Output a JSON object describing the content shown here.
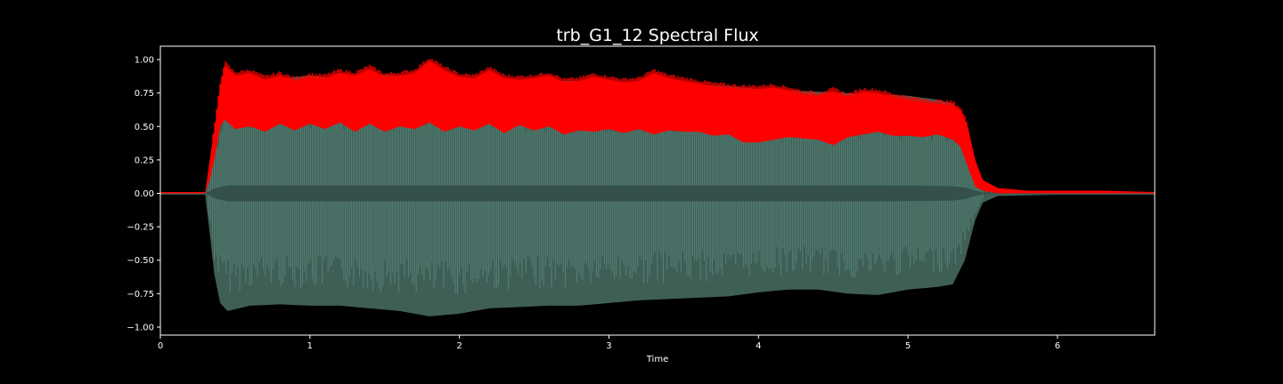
{
  "chart_data": {
    "type": "area",
    "title": "trb_G1_12 Spectral Flux",
    "xlabel": "Time",
    "ylabel": "",
    "xlim": [
      0,
      6.65
    ],
    "ylim": [
      -1.06,
      1.1
    ],
    "xticks": [
      0,
      1,
      2,
      3,
      4,
      5,
      6
    ],
    "xtick_labels": [
      "0",
      "1",
      "2",
      "3",
      "4",
      "5",
      "6"
    ],
    "yticks": [
      -1.0,
      -0.75,
      -0.5,
      -0.25,
      0.0,
      0.25,
      0.5,
      0.75,
      1.0
    ],
    "ytick_labels": [
      "−1.00",
      "−0.75",
      "−0.50",
      "−0.25",
      "0.00",
      "0.25",
      "0.50",
      "0.75",
      "1.00"
    ],
    "grid": false,
    "colors": {
      "background": "#000000",
      "waveform": "#3f5f56",
      "waveform_light": "#5e8c80",
      "flux": "#ff0000",
      "axes": "#ffffff"
    },
    "series": [
      {
        "kind": "waveform_envelope",
        "x": [
          0,
          0.3,
          0.33,
          0.36,
          0.4,
          0.45,
          0.6,
          0.8,
          1.0,
          1.2,
          1.4,
          1.6,
          1.8,
          2.0,
          2.2,
          2.4,
          2.6,
          2.8,
          3.0,
          3.2,
          3.4,
          3.6,
          3.8,
          4.0,
          4.2,
          4.4,
          4.6,
          4.8,
          5.0,
          5.2,
          5.3,
          5.38,
          5.45,
          5.5,
          5.6,
          6.0,
          6.65
        ],
        "upper": [
          0.01,
          0.01,
          0.2,
          0.45,
          0.6,
          0.87,
          0.84,
          0.86,
          0.88,
          0.86,
          0.89,
          0.88,
          0.87,
          0.86,
          0.85,
          0.85,
          0.84,
          0.84,
          0.83,
          0.82,
          0.82,
          0.81,
          0.8,
          0.78,
          0.77,
          0.76,
          0.75,
          0.74,
          0.73,
          0.7,
          0.67,
          0.55,
          0.25,
          0.08,
          0.02,
          0.01,
          0.01
        ],
        "lower": [
          -0.01,
          -0.01,
          -0.3,
          -0.6,
          -0.82,
          -0.88,
          -0.84,
          -0.83,
          -0.84,
          -0.84,
          -0.86,
          -0.88,
          -0.92,
          -0.9,
          -0.86,
          -0.85,
          -0.84,
          -0.84,
          -0.82,
          -0.8,
          -0.79,
          -0.78,
          -0.77,
          -0.74,
          -0.72,
          -0.72,
          -0.75,
          -0.76,
          -0.72,
          -0.7,
          -0.68,
          -0.5,
          -0.2,
          -0.07,
          -0.02,
          -0.01,
          -0.01
        ]
      },
      {
        "kind": "spectral_flux",
        "x": [
          0,
          0.3,
          0.33,
          0.37,
          0.4,
          0.43,
          0.5,
          0.6,
          0.7,
          0.8,
          0.9,
          1.0,
          1.1,
          1.2,
          1.3,
          1.4,
          1.5,
          1.6,
          1.7,
          1.8,
          1.9,
          2.0,
          2.1,
          2.2,
          2.3,
          2.4,
          2.5,
          2.6,
          2.7,
          2.8,
          2.9,
          3.0,
          3.1,
          3.2,
          3.3,
          3.4,
          3.5,
          3.6,
          3.7,
          3.8,
          3.9,
          4.0,
          4.1,
          4.2,
          4.3,
          4.4,
          4.5,
          4.6,
          4.7,
          4.8,
          4.9,
          5.0,
          5.1,
          5.2,
          5.3,
          5.35,
          5.4,
          5.45,
          5.5,
          5.6,
          5.8,
          6.0,
          6.3,
          6.65
        ],
        "upper": [
          0.01,
          0.01,
          0.25,
          0.55,
          0.8,
          0.96,
          0.88,
          0.9,
          0.85,
          0.88,
          0.84,
          0.87,
          0.86,
          0.9,
          0.88,
          0.93,
          0.87,
          0.88,
          0.9,
          0.99,
          0.92,
          0.87,
          0.86,
          0.92,
          0.86,
          0.85,
          0.86,
          0.88,
          0.83,
          0.84,
          0.87,
          0.85,
          0.83,
          0.84,
          0.9,
          0.86,
          0.84,
          0.82,
          0.8,
          0.79,
          0.78,
          0.78,
          0.79,
          0.77,
          0.74,
          0.73,
          0.76,
          0.72,
          0.76,
          0.75,
          0.72,
          0.7,
          0.68,
          0.67,
          0.66,
          0.62,
          0.5,
          0.25,
          0.1,
          0.04,
          0.02,
          0.02,
          0.02,
          0.01
        ],
        "lower": [
          0.0,
          0.0,
          0.1,
          0.3,
          0.5,
          0.55,
          0.48,
          0.5,
          0.46,
          0.52,
          0.47,
          0.52,
          0.48,
          0.53,
          0.46,
          0.52,
          0.46,
          0.5,
          0.48,
          0.53,
          0.46,
          0.5,
          0.47,
          0.52,
          0.45,
          0.51,
          0.47,
          0.5,
          0.44,
          0.47,
          0.46,
          0.48,
          0.45,
          0.48,
          0.44,
          0.47,
          0.46,
          0.46,
          0.43,
          0.44,
          0.38,
          0.38,
          0.4,
          0.42,
          0.41,
          0.4,
          0.36,
          0.42,
          0.44,
          0.46,
          0.43,
          0.43,
          0.42,
          0.44,
          0.4,
          0.35,
          0.2,
          0.05,
          0.02,
          0.0,
          0.0,
          0.0,
          0.0,
          0.0
        ]
      }
    ]
  }
}
